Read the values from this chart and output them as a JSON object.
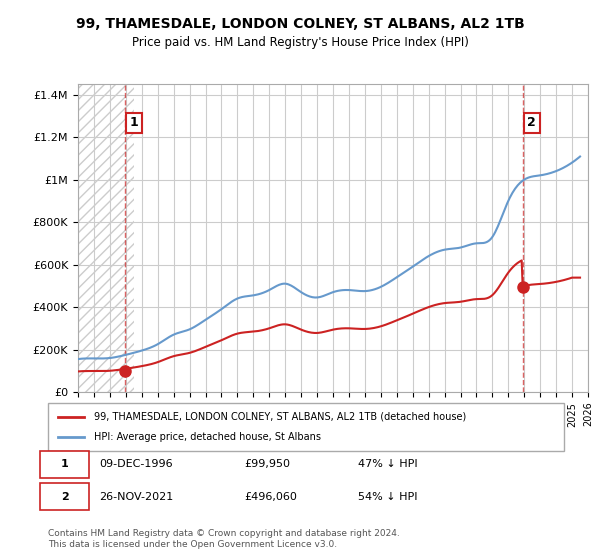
{
  "title": "99, THAMESDALE, LONDON COLNEY, ST ALBANS, AL2 1TB",
  "subtitle": "Price paid vs. HM Land Registry's House Price Index (HPI)",
  "ylabel_ticks": [
    "£0",
    "£200K",
    "£400K",
    "£600K",
    "£800K",
    "£1M",
    "£1.2M",
    "£1.4M"
  ],
  "ytick_values": [
    0,
    200000,
    400000,
    600000,
    800000,
    1000000,
    1200000,
    1400000
  ],
  "ylim": [
    0,
    1450000
  ],
  "xlim_start": 1994.0,
  "xlim_end": 2026.0,
  "sale1_date": 1996.94,
  "sale1_price": 99950,
  "sale1_label": "1",
  "sale2_date": 2021.9,
  "sale2_price": 496060,
  "sale2_label": "2",
  "hpi_color": "#6699cc",
  "sale_color": "#cc2222",
  "annotation_box_color": "#cc2222",
  "grid_color": "#cccccc",
  "hatch_color": "#dddddd",
  "legend_line1": "99, THAMESDALE, LONDON COLNEY, ST ALBANS, AL2 1TB (detached house)",
  "legend_line2": "HPI: Average price, detached house, St Albans",
  "table_row1": [
    "1",
    "09-DEC-1996",
    "£99,950",
    "47% ↓ HPI"
  ],
  "table_row2": [
    "2",
    "26-NOV-2021",
    "£496,060",
    "54% ↓ HPI"
  ],
  "footer": "Contains HM Land Registry data © Crown copyright and database right 2024.\nThis data is licensed under the Open Government Licence v3.0.",
  "background_hatch_end": 1997.5
}
